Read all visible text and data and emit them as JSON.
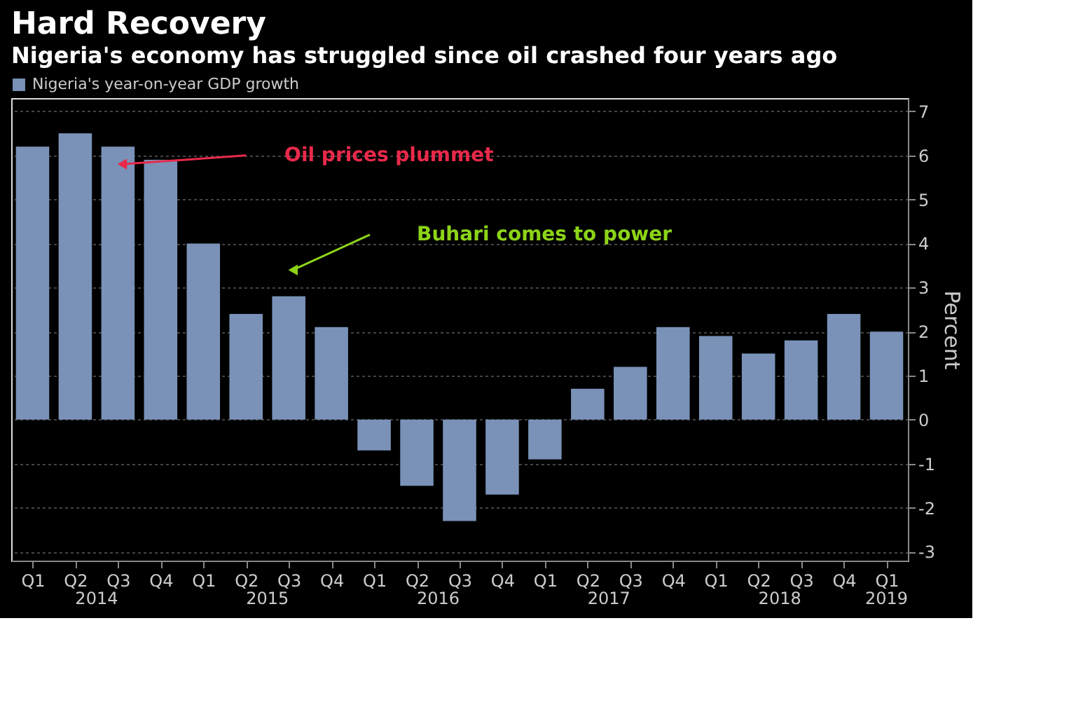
{
  "chart_data": {
    "type": "bar",
    "title": "Hard Recovery",
    "subtitle": "Nigeria's economy has struggled since oil crashed four years ago",
    "ylabel": "Percent",
    "categories": [
      "Q1",
      "Q2",
      "Q3",
      "Q4",
      "Q1",
      "Q2",
      "Q3",
      "Q4",
      "Q1",
      "Q2",
      "Q3",
      "Q4",
      "Q1",
      "Q2",
      "Q3",
      "Q4",
      "Q1",
      "Q2",
      "Q3",
      "Q4",
      "Q1"
    ],
    "series": [
      {
        "name": "Nigeria's year-on-year GDP growth",
        "color": "#7a92b8",
        "values": [
          6.2,
          6.5,
          6.2,
          5.9,
          4.0,
          2.4,
          2.8,
          2.1,
          -0.7,
          -1.5,
          -2.3,
          -1.7,
          -0.9,
          0.7,
          1.2,
          2.1,
          1.9,
          1.5,
          1.8,
          2.4,
          2.0
        ]
      }
    ],
    "ylim": [
      -3.2,
      7.3
    ],
    "yticks": [
      -3,
      -2,
      -1,
      0,
      1,
      2,
      3,
      4,
      5,
      6,
      7
    ],
    "grid": "y",
    "legend": "top left",
    "annotations": [
      "Oil prices plummet",
      "Buhari comes to power",
      "2014",
      "2015",
      "2016",
      "2017",
      "2018",
      "2019"
    ]
  }
}
